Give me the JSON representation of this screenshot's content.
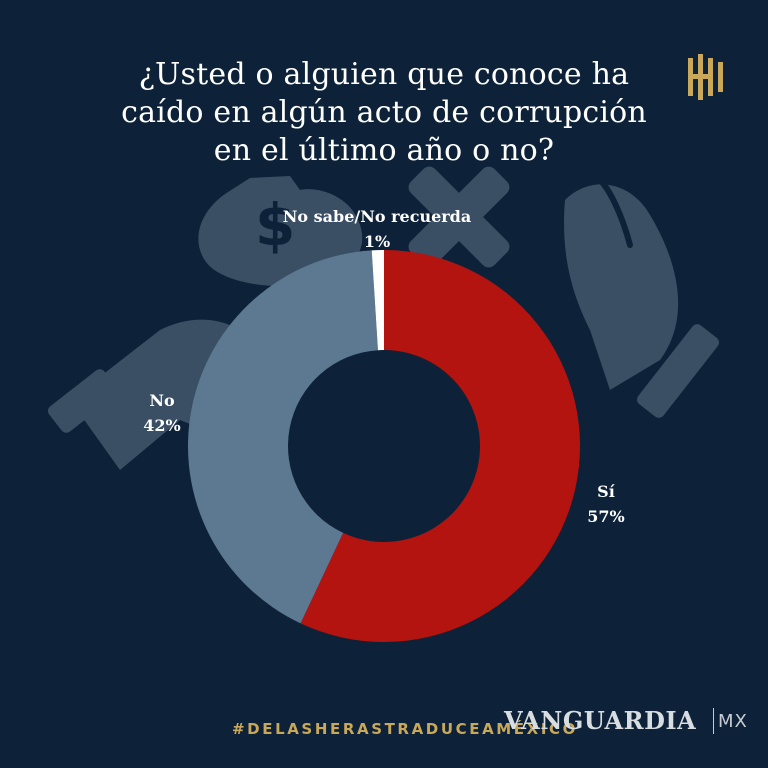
{
  "title_lines": [
    "¿Usted o alguien que conoce ha",
    "caído en algún acto de corrupción",
    "en el último año o no?"
  ],
  "hashtag": "#DELASHERASTRADUCEAMÉXICO",
  "brand": {
    "name": "VANGUARDIA",
    "suffix": "MX"
  },
  "colors": {
    "background": "#0d2238",
    "illustration": "#3a4f64",
    "logo_gold": "#c9a85a"
  },
  "icons": [
    "money-bag-icon",
    "hands-exchange-icon",
    "x-mark-icon",
    "brand-logo-icon"
  ],
  "chart_data": {
    "type": "pie",
    "donut": true,
    "title": "¿Usted o alguien que conoce ha caído en algún acto de corrupción en el último año o no?",
    "slices": [
      {
        "label": "Sí",
        "value": 57,
        "display": "57%",
        "color": "#b3140f"
      },
      {
        "label": "No",
        "value": 42,
        "display": "42%",
        "color": "#5d7891"
      },
      {
        "label": "No sabe/No recuerda",
        "value": 1,
        "display": "1%",
        "color": "#ffffff"
      }
    ]
  }
}
